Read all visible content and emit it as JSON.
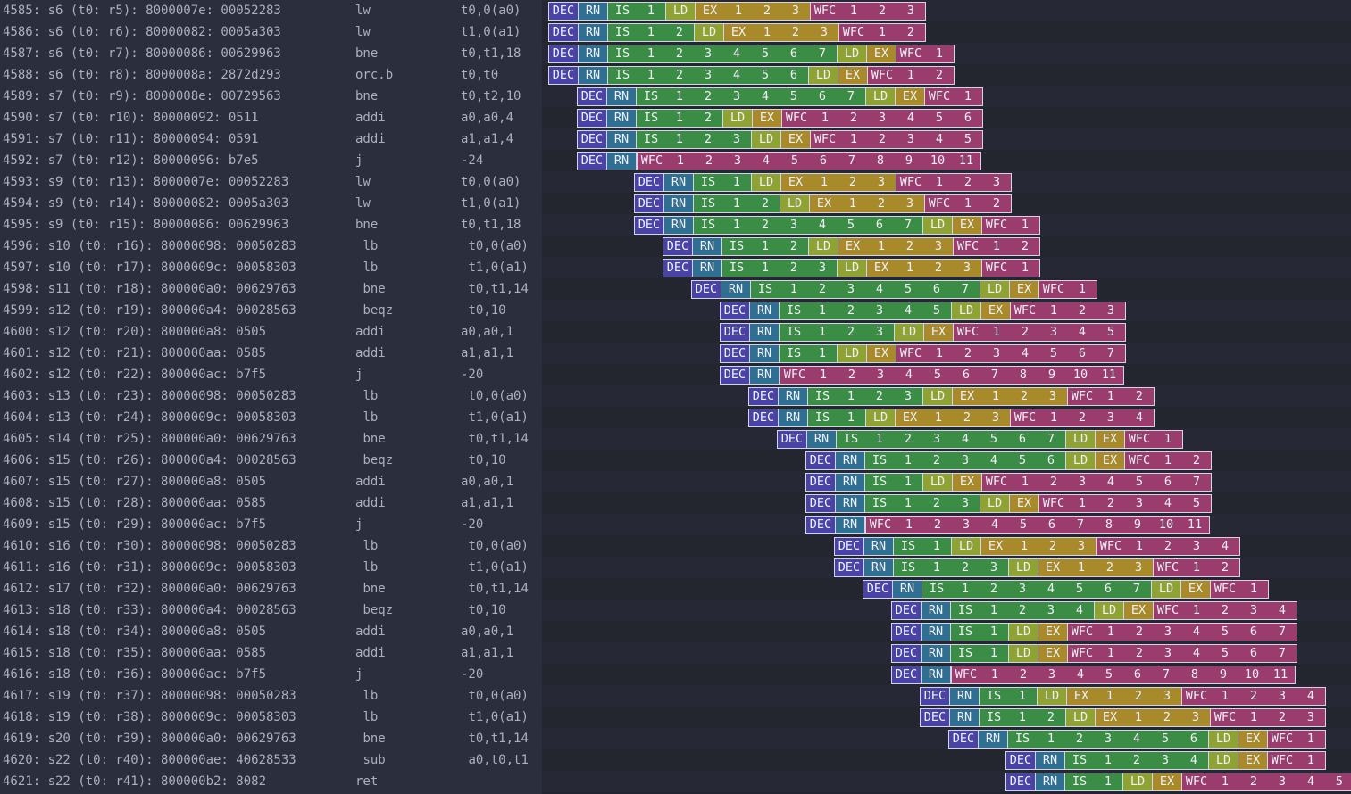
{
  "colors": {
    "DEC": "#4a43a6",
    "RN": "#2f6f91",
    "IS": "#3b8d46",
    "LD": "#8fa334",
    "EX": "#a88a2a",
    "WFC": "#9a3d6e"
  },
  "rows": [
    {
      "id": "4585: s6 (t0: r5): 8000007e: 00052283",
      "mnemonic": "lw",
      "operands": "t0,0(a0)",
      "stages": [
        [
          "DEC"
        ],
        [
          "RN"
        ],
        [
          "IS",
          "1"
        ],
        [
          "LD"
        ],
        [
          "EX",
          "1",
          "2",
          "3"
        ],
        [
          "WFC",
          "1",
          "2",
          "3"
        ]
      ]
    },
    {
      "id": "4586: s6 (t0: r6): 80000082: 0005a303",
      "mnemonic": "lw",
      "operands": "t1,0(a1)",
      "stages": [
        [
          "DEC"
        ],
        [
          "RN"
        ],
        [
          "IS",
          "1",
          "2"
        ],
        [
          "LD"
        ],
        [
          "EX",
          "1",
          "2",
          "3"
        ],
        [
          "WFC",
          "1",
          "2"
        ]
      ]
    },
    {
      "id": "4587: s6 (t0: r7): 80000086: 00629963",
      "mnemonic": "bne",
      "operands": "t0,t1,18",
      "stages": [
        [
          "DEC"
        ],
        [
          "RN"
        ],
        [
          "IS",
          "1",
          "2",
          "3",
          "4",
          "5",
          "6",
          "7"
        ],
        [
          "LD"
        ],
        [
          "EX"
        ],
        [
          "WFC",
          "1"
        ]
      ]
    },
    {
      "id": "4588: s6 (t0: r8): 8000008a: 2872d293",
      "mnemonic": "orc.b",
      "operands": "t0,t0",
      "stages": [
        [
          "DEC"
        ],
        [
          "RN"
        ],
        [
          "IS",
          "1",
          "2",
          "3",
          "4",
          "5",
          "6"
        ],
        [
          "LD"
        ],
        [
          "EX"
        ],
        [
          "WFC",
          "1",
          "2"
        ]
      ]
    },
    {
      "id": "4589: s7 (t0: r9): 8000008e: 00729563",
      "mnemonic": "bne",
      "operands": "t0,t2,10",
      "stages": [
        [
          "DEC"
        ],
        [
          "RN"
        ],
        [
          "IS",
          "1",
          "2",
          "3",
          "4",
          "5",
          "6",
          "7"
        ],
        [
          "LD"
        ],
        [
          "EX"
        ],
        [
          "WFC",
          "1"
        ]
      ]
    },
    {
      "id": "4590: s7 (t0: r10): 80000092: 0511",
      "mnemonic": "addi",
      "operands": "a0,a0,4",
      "stages": [
        [
          "DEC"
        ],
        [
          "RN"
        ],
        [
          "IS",
          "1",
          "2"
        ],
        [
          "LD"
        ],
        [
          "EX"
        ],
        [
          "WFC",
          "1",
          "2",
          "3",
          "4",
          "5",
          "6"
        ]
      ]
    },
    {
      "id": "4591: s7 (t0: r11): 80000094: 0591",
      "mnemonic": "addi",
      "operands": "a1,a1,4",
      "stages": [
        [
          "DEC"
        ],
        [
          "RN"
        ],
        [
          "IS",
          "1",
          "2",
          "3"
        ],
        [
          "LD"
        ],
        [
          "EX"
        ],
        [
          "WFC",
          "1",
          "2",
          "3",
          "4",
          "5"
        ]
      ]
    },
    {
      "id": "4592: s7 (t0: r12): 80000096: b7e5",
      "mnemonic": "j",
      "operands": "-24",
      "stages": [
        [
          "DEC"
        ],
        [
          "RN"
        ],
        [
          "WFC",
          "1",
          "2",
          "3",
          "4",
          "5",
          "6",
          "7",
          "8",
          "9",
          "10",
          "11"
        ]
      ]
    },
    {
      "id": "4593: s9 (t0: r13): 8000007e: 00052283",
      "mnemonic": "lw",
      "operands": "t0,0(a0)",
      "stages": [
        [
          "DEC"
        ],
        [
          "RN"
        ],
        [
          "IS",
          "1"
        ],
        [
          "LD"
        ],
        [
          "EX",
          "1",
          "2",
          "3"
        ],
        [
          "WFC",
          "1",
          "2",
          "3"
        ]
      ]
    },
    {
      "id": "4594: s9 (t0: r14): 80000082: 0005a303",
      "mnemonic": "lw",
      "operands": "t1,0(a1)",
      "stages": [
        [
          "DEC"
        ],
        [
          "RN"
        ],
        [
          "IS",
          "1",
          "2"
        ],
        [
          "LD"
        ],
        [
          "EX",
          "1",
          "2",
          "3"
        ],
        [
          "WFC",
          "1",
          "2"
        ]
      ]
    },
    {
      "id": "4595: s9 (t0: r15): 80000086: 00629963",
      "mnemonic": "bne",
      "operands": "t0,t1,18",
      "stages": [
        [
          "DEC"
        ],
        [
          "RN"
        ],
        [
          "IS",
          "1",
          "2",
          "3",
          "4",
          "5",
          "6",
          "7"
        ],
        [
          "LD"
        ],
        [
          "EX"
        ],
        [
          "WFC",
          "1"
        ]
      ]
    },
    {
      "id": "4596: s10 (t0: r16): 80000098: 00050283",
      "mnemonic": "lb",
      "operands": "t0,0(a0)",
      "stages": [
        [
          "DEC"
        ],
        [
          "RN"
        ],
        [
          "IS",
          "1",
          "2"
        ],
        [
          "LD"
        ],
        [
          "EX",
          "1",
          "2",
          "3"
        ],
        [
          "WFC",
          "1",
          "2"
        ]
      ]
    },
    {
      "id": "4597: s10 (t0: r17): 8000009c: 00058303",
      "mnemonic": "lb",
      "operands": "t1,0(a1)",
      "stages": [
        [
          "DEC"
        ],
        [
          "RN"
        ],
        [
          "IS",
          "1",
          "2",
          "3"
        ],
        [
          "LD"
        ],
        [
          "EX",
          "1",
          "2",
          "3"
        ],
        [
          "WFC",
          "1"
        ]
      ]
    },
    {
      "id": "4598: s11 (t0: r18): 800000a0: 00629763",
      "mnemonic": "bne",
      "operands": "t0,t1,14",
      "stages": [
        [
          "DEC"
        ],
        [
          "RN"
        ],
        [
          "IS",
          "1",
          "2",
          "3",
          "4",
          "5",
          "6",
          "7"
        ],
        [
          "LD"
        ],
        [
          "EX"
        ],
        [
          "WFC",
          "1"
        ]
      ]
    },
    {
      "id": "4599: s12 (t0: r19): 800000a4: 00028563",
      "mnemonic": "beqz",
      "operands": "t0,10",
      "stages": [
        [
          "DEC"
        ],
        [
          "RN"
        ],
        [
          "IS",
          "1",
          "2",
          "3",
          "4",
          "5"
        ],
        [
          "LD"
        ],
        [
          "EX"
        ],
        [
          "WFC",
          "1",
          "2",
          "3"
        ]
      ]
    },
    {
      "id": "4600: s12 (t0: r20): 800000a8: 0505",
      "mnemonic": "addi",
      "operands": "a0,a0,1",
      "stages": [
        [
          "DEC"
        ],
        [
          "RN"
        ],
        [
          "IS",
          "1",
          "2",
          "3"
        ],
        [
          "LD"
        ],
        [
          "EX"
        ],
        [
          "WFC",
          "1",
          "2",
          "3",
          "4",
          "5"
        ]
      ]
    },
    {
      "id": "4601: s12 (t0: r21): 800000aa: 0585",
      "mnemonic": "addi",
      "operands": "a1,a1,1",
      "stages": [
        [
          "DEC"
        ],
        [
          "RN"
        ],
        [
          "IS",
          "1"
        ],
        [
          "LD"
        ],
        [
          "EX"
        ],
        [
          "WFC",
          "1",
          "2",
          "3",
          "4",
          "5",
          "6",
          "7"
        ]
      ]
    },
    {
      "id": "4602: s12 (t0: r22): 800000ac: b7f5",
      "mnemonic": "j",
      "operands": "-20",
      "stages": [
        [
          "DEC"
        ],
        [
          "RN"
        ],
        [
          "WFC",
          "1",
          "2",
          "3",
          "4",
          "5",
          "6",
          "7",
          "8",
          "9",
          "10",
          "11"
        ]
      ]
    },
    {
      "id": "4603: s13 (t0: r23): 80000098: 00050283",
      "mnemonic": "lb",
      "operands": "t0,0(a0)",
      "stages": [
        [
          "DEC"
        ],
        [
          "RN"
        ],
        [
          "IS",
          "1",
          "2",
          "3"
        ],
        [
          "LD"
        ],
        [
          "EX",
          "1",
          "2",
          "3"
        ],
        [
          "WFC",
          "1",
          "2"
        ]
      ]
    },
    {
      "id": "4604: s13 (t0: r24): 8000009c: 00058303",
      "mnemonic": "lb",
      "operands": "t1,0(a1)",
      "stages": [
        [
          "DEC"
        ],
        [
          "RN"
        ],
        [
          "IS",
          "1"
        ],
        [
          "LD"
        ],
        [
          "EX",
          "1",
          "2",
          "3"
        ],
        [
          "WFC",
          "1",
          "2",
          "3",
          "4"
        ]
      ]
    },
    {
      "id": "4605: s14 (t0: r25): 800000a0: 00629763",
      "mnemonic": "bne",
      "operands": "t0,t1,14",
      "stages": [
        [
          "DEC"
        ],
        [
          "RN"
        ],
        [
          "IS",
          "1",
          "2",
          "3",
          "4",
          "5",
          "6",
          "7"
        ],
        [
          "LD"
        ],
        [
          "EX"
        ],
        [
          "WFC",
          "1"
        ]
      ]
    },
    {
      "id": "4606: s15 (t0: r26): 800000a4: 00028563",
      "mnemonic": "beqz",
      "operands": "t0,10",
      "stages": [
        [
          "DEC"
        ],
        [
          "RN"
        ],
        [
          "IS",
          "1",
          "2",
          "3",
          "4",
          "5",
          "6"
        ],
        [
          "LD"
        ],
        [
          "EX"
        ],
        [
          "WFC",
          "1",
          "2"
        ]
      ]
    },
    {
      "id": "4607: s15 (t0: r27): 800000a8: 0505",
      "mnemonic": "addi",
      "operands": "a0,a0,1",
      "stages": [
        [
          "DEC"
        ],
        [
          "RN"
        ],
        [
          "IS",
          "1"
        ],
        [
          "LD"
        ],
        [
          "EX"
        ],
        [
          "WFC",
          "1",
          "2",
          "3",
          "4",
          "5",
          "6",
          "7"
        ]
      ]
    },
    {
      "id": "4608: s15 (t0: r28): 800000aa: 0585",
      "mnemonic": "addi",
      "operands": "a1,a1,1",
      "stages": [
        [
          "DEC"
        ],
        [
          "RN"
        ],
        [
          "IS",
          "1",
          "2",
          "3"
        ],
        [
          "LD"
        ],
        [
          "EX"
        ],
        [
          "WFC",
          "1",
          "2",
          "3",
          "4",
          "5"
        ]
      ]
    },
    {
      "id": "4609: s15 (t0: r29): 800000ac: b7f5",
      "mnemonic": "j",
      "operands": "-20",
      "stages": [
        [
          "DEC"
        ],
        [
          "RN"
        ],
        [
          "WFC",
          "1",
          "2",
          "3",
          "4",
          "5",
          "6",
          "7",
          "8",
          "9",
          "10",
          "11"
        ]
      ]
    },
    {
      "id": "4610: s16 (t0: r30): 80000098: 00050283",
      "mnemonic": "lb",
      "operands": "t0,0(a0)",
      "stages": [
        [
          "DEC"
        ],
        [
          "RN"
        ],
        [
          "IS",
          "1"
        ],
        [
          "LD"
        ],
        [
          "EX",
          "1",
          "2",
          "3"
        ],
        [
          "WFC",
          "1",
          "2",
          "3",
          "4"
        ]
      ]
    },
    {
      "id": "4611: s16 (t0: r31): 8000009c: 00058303",
      "mnemonic": "lb",
      "operands": "t1,0(a1)",
      "stages": [
        [
          "DEC"
        ],
        [
          "RN"
        ],
        [
          "IS",
          "1",
          "2",
          "3"
        ],
        [
          "LD"
        ],
        [
          "EX",
          "1",
          "2",
          "3"
        ],
        [
          "WFC",
          "1",
          "2"
        ]
      ]
    },
    {
      "id": "4612: s17 (t0: r32): 800000a0: 00629763",
      "mnemonic": "bne",
      "operands": "t0,t1,14",
      "stages": [
        [
          "DEC"
        ],
        [
          "RN"
        ],
        [
          "IS",
          "1",
          "2",
          "3",
          "4",
          "5",
          "6",
          "7"
        ],
        [
          "LD"
        ],
        [
          "EX"
        ],
        [
          "WFC",
          "1"
        ]
      ]
    },
    {
      "id": "4613: s18 (t0: r33): 800000a4: 00028563",
      "mnemonic": "beqz",
      "operands": "t0,10",
      "stages": [
        [
          "DEC"
        ],
        [
          "RN"
        ],
        [
          "IS",
          "1",
          "2",
          "3",
          "4"
        ],
        [
          "LD"
        ],
        [
          "EX"
        ],
        [
          "WFC",
          "1",
          "2",
          "3",
          "4"
        ]
      ]
    },
    {
      "id": "4614: s18 (t0: r34): 800000a8: 0505",
      "mnemonic": "addi",
      "operands": "a0,a0,1",
      "stages": [
        [
          "DEC"
        ],
        [
          "RN"
        ],
        [
          "IS",
          "1"
        ],
        [
          "LD"
        ],
        [
          "EX"
        ],
        [
          "WFC",
          "1",
          "2",
          "3",
          "4",
          "5",
          "6",
          "7"
        ]
      ]
    },
    {
      "id": "4615: s18 (t0: r35): 800000aa: 0585",
      "mnemonic": "addi",
      "operands": "a1,a1,1",
      "stages": [
        [
          "DEC"
        ],
        [
          "RN"
        ],
        [
          "IS",
          "1"
        ],
        [
          "LD"
        ],
        [
          "EX"
        ],
        [
          "WFC",
          "1",
          "2",
          "3",
          "4",
          "5",
          "6",
          "7"
        ]
      ]
    },
    {
      "id": "4616: s18 (t0: r36): 800000ac: b7f5",
      "mnemonic": "j",
      "operands": "-20",
      "stages": [
        [
          "DEC"
        ],
        [
          "RN"
        ],
        [
          "WFC",
          "1",
          "2",
          "3",
          "4",
          "5",
          "6",
          "7",
          "8",
          "9",
          "10",
          "11"
        ]
      ]
    },
    {
      "id": "4617: s19 (t0: r37): 80000098: 00050283",
      "mnemonic": "lb",
      "operands": "t0,0(a0)",
      "stages": [
        [
          "DEC"
        ],
        [
          "RN"
        ],
        [
          "IS",
          "1"
        ],
        [
          "LD"
        ],
        [
          "EX",
          "1",
          "2",
          "3"
        ],
        [
          "WFC",
          "1",
          "2",
          "3",
          "4"
        ]
      ]
    },
    {
      "id": "4618: s19 (t0: r38): 8000009c: 00058303",
      "mnemonic": "lb",
      "operands": "t1,0(a1)",
      "stages": [
        [
          "DEC"
        ],
        [
          "RN"
        ],
        [
          "IS",
          "1",
          "2"
        ],
        [
          "LD"
        ],
        [
          "EX",
          "1",
          "2",
          "3"
        ],
        [
          "WFC",
          "1",
          "2",
          "3"
        ]
      ]
    },
    {
      "id": "4619: s20 (t0: r39): 800000a0: 00629763",
      "mnemonic": "bne",
      "operands": "t0,t1,14",
      "stages": [
        [
          "DEC"
        ],
        [
          "RN"
        ],
        [
          "IS",
          "1",
          "2",
          "3",
          "4",
          "5",
          "6"
        ],
        [
          "LD"
        ],
        [
          "EX"
        ],
        [
          "WFC",
          "1"
        ]
      ]
    },
    {
      "id": "4620: s22 (t0: r40): 800000ae: 40628533",
      "mnemonic": "sub",
      "operands": "a0,t0,t1",
      "stages": [
        [
          "DEC"
        ],
        [
          "RN"
        ],
        [
          "IS",
          "1",
          "2",
          "3",
          "4"
        ],
        [
          "LD"
        ],
        [
          "EX"
        ],
        [
          "WFC",
          "1"
        ]
      ]
    },
    {
      "id": "4621: s22 (t0: r41): 800000b2: 8082",
      "mnemonic": "ret",
      "operands": "",
      "stages": [
        [
          "DEC"
        ],
        [
          "RN"
        ],
        [
          "IS",
          "1"
        ],
        [
          "LD"
        ],
        [
          "EX"
        ],
        [
          "WFC",
          "1",
          "2",
          "3",
          "4",
          "5"
        ]
      ]
    }
  ]
}
